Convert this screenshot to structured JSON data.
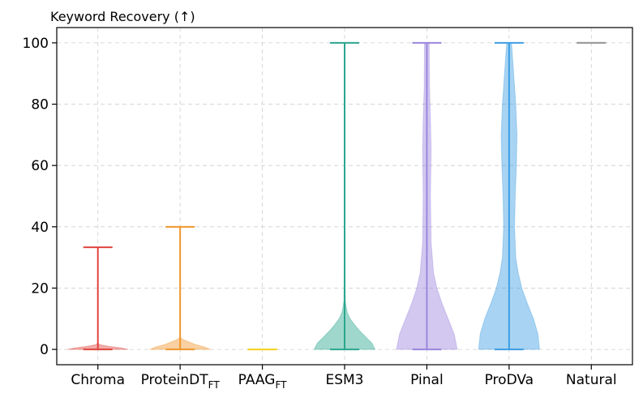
{
  "chart_data": {
    "type": "violin",
    "title": "Keyword Recovery (↑)",
    "xlabel": "",
    "ylabel": "",
    "ylim": [
      -5,
      105
    ],
    "yticks": [
      0,
      20,
      40,
      60,
      80,
      100
    ],
    "ytick_labels": [
      "0",
      "20",
      "40",
      "60",
      "80",
      "100"
    ],
    "grid": true,
    "categories": [
      {
        "name": "Chroma",
        "sub": "",
        "color": "#e0443e",
        "min": 0,
        "max": 33.3,
        "median": 0,
        "density": [
          [
            0,
            1.0
          ],
          [
            0.5,
            0.75
          ],
          [
            1,
            0.35
          ],
          [
            1.5,
            0.08
          ],
          [
            2,
            0.0
          ]
        ]
      },
      {
        "name": "ProteinDT",
        "sub": "FT",
        "color": "#f0962e",
        "min": 0,
        "max": 40,
        "median": 0,
        "density": [
          [
            0,
            1.0
          ],
          [
            0.8,
            0.8
          ],
          [
            1.6,
            0.5
          ],
          [
            2.4,
            0.3
          ],
          [
            3.2,
            0.1
          ],
          [
            4,
            0.0
          ]
        ]
      },
      {
        "name": "PAAG",
        "sub": "FT",
        "color": "#f5d32a",
        "min": 0,
        "max": 0,
        "median": 0,
        "density": [
          [
            0,
            0.0
          ]
        ]
      },
      {
        "name": "ESM3",
        "sub": "",
        "color": "#2aa68e",
        "min": 0,
        "max": 100,
        "median": 0,
        "density": [
          [
            0,
            1.0
          ],
          [
            2,
            0.9
          ],
          [
            4,
            0.7
          ],
          [
            6,
            0.5
          ],
          [
            8,
            0.33
          ],
          [
            10,
            0.18
          ],
          [
            12,
            0.09
          ],
          [
            14,
            0.05
          ],
          [
            16,
            0.02
          ],
          [
            30,
            0.01
          ],
          [
            100,
            0.005
          ]
        ]
      },
      {
        "name": "Pinal",
        "sub": "",
        "color": "#9b86dd",
        "min": 0,
        "max": 100,
        "median": 0,
        "density": [
          [
            0,
            1.0
          ],
          [
            5,
            0.9
          ],
          [
            10,
            0.7
          ],
          [
            15,
            0.5
          ],
          [
            20,
            0.33
          ],
          [
            25,
            0.22
          ],
          [
            35,
            0.14
          ],
          [
            50,
            0.12
          ],
          [
            65,
            0.14
          ],
          [
            75,
            0.12
          ],
          [
            85,
            0.09
          ],
          [
            95,
            0.08
          ],
          [
            100,
            0.08
          ]
        ]
      },
      {
        "name": "ProDVa",
        "sub": "",
        "color": "#3d9ee3",
        "min": 0,
        "max": 100,
        "median": 0,
        "density": [
          [
            0,
            1.0
          ],
          [
            5,
            0.95
          ],
          [
            10,
            0.8
          ],
          [
            15,
            0.6
          ],
          [
            20,
            0.42
          ],
          [
            25,
            0.3
          ],
          [
            30,
            0.22
          ],
          [
            40,
            0.18
          ],
          [
            50,
            0.2
          ],
          [
            60,
            0.24
          ],
          [
            70,
            0.26
          ],
          [
            80,
            0.22
          ],
          [
            90,
            0.15
          ],
          [
            100,
            0.08
          ]
        ]
      },
      {
        "name": "Natural",
        "sub": "",
        "color": "#9a9a9a",
        "min": 100,
        "max": 100,
        "median": 100,
        "density": [
          [
            100,
            0.0
          ]
        ]
      }
    ]
  }
}
